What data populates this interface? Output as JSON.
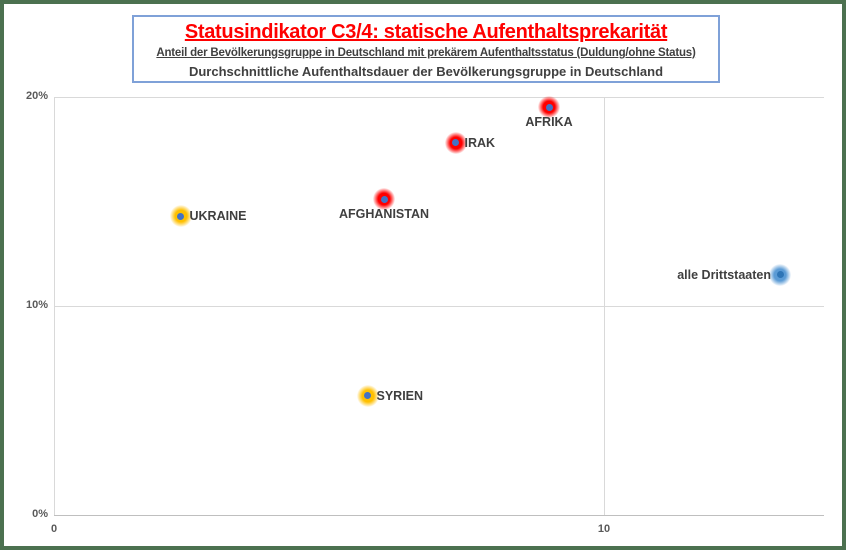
{
  "frame": {
    "border_color": "#4C7150",
    "background": "#FFFFFF"
  },
  "title_box": {
    "border_color": "#7FA1D8",
    "line1": "Statusindikator C3/4: statische Aufenthaltsprekarität",
    "line1_color": "#FF0000",
    "line2": "Anteil der Bevölkerungsgruppe in Deutschland mit prekärem Aufenthaltsstatus (Duldung/ohne Status)",
    "line3": "Durchschnittliche Aufenthaltsdauer der Bevölkerungsgruppe in Deutschland",
    "text_color": "#404040"
  },
  "chart_data": {
    "type": "scatter",
    "title": "Statusindikator C3/4: statische Aufenthaltsprekarität",
    "ylabel": "Anteil der Bevölkerungsgruppe in Deutschland mit prekärem Aufenthaltsstatus (Duldung/ohne Status)",
    "xlabel": "Durchschnittliche Aufenthaltsdauer der Bevölkerungsgruppe in Deutschland",
    "x_axis": {
      "range": [
        0,
        14
      ],
      "ticks": [
        {
          "label": "0",
          "value": 0
        },
        {
          "label": "10",
          "value": 10
        }
      ]
    },
    "y_axis": {
      "range": [
        0,
        20
      ],
      "ticks": [
        {
          "label": "20%",
          "value": 20
        },
        {
          "label": "10%",
          "value": 10
        },
        {
          "label": "0%",
          "value": 0
        }
      ]
    },
    "grid": true,
    "style": {
      "grid_color": "#D9D9D9",
      "axis_line_color": "#BFBFBF",
      "tick_label_color": "#595959",
      "point_label_color": "#3F3F3F"
    },
    "points": [
      {
        "label": "UKRAINE",
        "x": 2.3,
        "y": 14.3,
        "glow_color": "#FFC000",
        "dot_color": "#4472C4",
        "label_position": "right"
      },
      {
        "label": "AFGHANISTAN",
        "x": 6.0,
        "y": 15.1,
        "glow_color": "#FF0000",
        "dot_color": "#4472C4",
        "label_position": "below"
      },
      {
        "label": "IRAK",
        "x": 7.3,
        "y": 17.8,
        "glow_color": "#FF0000",
        "dot_color": "#4472C4",
        "label_position": "right"
      },
      {
        "label": "AFRIKA",
        "x": 9.0,
        "y": 19.5,
        "glow_color": "#FF0000",
        "dot_color": "#4472C4",
        "label_position": "below"
      },
      {
        "label": "SYRIEN",
        "x": 5.7,
        "y": 5.7,
        "glow_color": "#FFC000",
        "dot_color": "#4472C4",
        "label_position": "right"
      },
      {
        "label": "alle Drittstaaten",
        "x": 13.2,
        "y": 11.5,
        "glow_color": "#5B9BD5",
        "dot_color": "#2E75B6",
        "label_position": "left"
      }
    ]
  }
}
